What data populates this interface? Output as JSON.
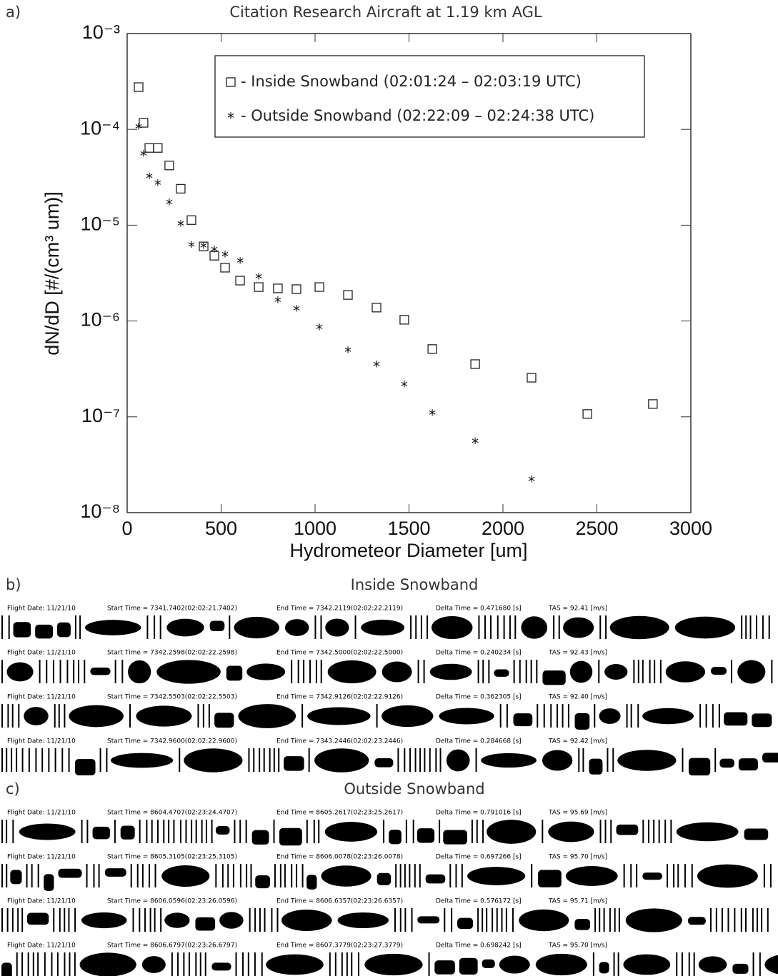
{
  "chart_data": {
    "type": "scatter",
    "panel_label": "a)",
    "title": "Citation Research Aircraft at 1.19 km AGL",
    "xlabel": "Hydrometeor Diameter [um]",
    "ylabel": "dN/dD [#/(cm³ um)]",
    "xlim": [
      0,
      3000
    ],
    "xticks": [
      0,
      500,
      1000,
      1500,
      2000,
      2500,
      3000
    ],
    "ylim": [
      1e-08,
      0.001
    ],
    "yscale": "log",
    "yticks": [
      {
        "value": 1e-08,
        "label": "10⁻⁸"
      },
      {
        "value": 1e-07,
        "label": "10⁻⁷"
      },
      {
        "value": 1e-06,
        "label": "10⁻⁶"
      },
      {
        "value": 1e-05,
        "label": "10⁻⁵"
      },
      {
        "value": 0.0001,
        "label": "10⁻⁴"
      },
      {
        "value": 0.001,
        "label": "10⁻³"
      }
    ],
    "legend": "upper right",
    "series": [
      {
        "name": "- Inside Snowband (02:01:24 – 02:03:19 UTC)",
        "marker": "square",
        "color": "#222",
        "x": [
          61,
          87,
          118,
          163,
          224,
          285,
          342,
          407,
          464,
          521,
          601,
          700,
          802,
          901,
          1023,
          1175,
          1327,
          1475,
          1624,
          1852,
          2152,
          2449,
          2798
        ],
        "values": [
          0.000276,
          0.000117,
          6.4e-05,
          6.4e-05,
          4.2e-05,
          2.4e-05,
          1.13e-05,
          6e-06,
          4.8e-06,
          3.6e-06,
          2.64e-06,
          2.26e-06,
          2.19e-06,
          2.15e-06,
          2.26e-06,
          1.87e-06,
          1.38e-06,
          1.03e-06,
          5.1e-07,
          3.55e-07,
          2.56e-07,
          1.07e-07,
          1.36e-07
        ]
      },
      {
        "name": "- Outside Snowband (02:22:09 – 02:24:38 UTC)",
        "marker": "star",
        "color": "#222",
        "x": [
          61,
          87,
          118,
          163,
          224,
          285,
          342,
          407,
          464,
          521,
          601,
          700,
          802,
          901,
          1023,
          1175,
          1327,
          1475,
          1624,
          1852,
          2152
        ],
        "values": [
          0.000106,
          5.5e-05,
          3.2e-05,
          2.72e-05,
          1.71e-05,
          1.02e-05,
          6.2e-06,
          6e-06,
          5.5e-06,
          4.9e-06,
          4.2e-06,
          2.88e-06,
          1.63e-06,
          1.33e-06,
          8.5e-07,
          4.9e-07,
          3.5e-07,
          2.16e-07,
          1.09e-07,
          5.5e-08,
          2.2e-08
        ]
      }
    ]
  },
  "panels": [
    {
      "label": "b)",
      "title": "Inside Snowband",
      "rows": [
        [
          "Flight Date: 11/21/10",
          "Start Time = 7341.7402(02:02:21.7402)",
          "End Time = 7342.2119(02:02:22.2119)",
          "Delta Time = 0.471680 [s]",
          "TAS = 92.41 [m/s]"
        ],
        [
          "Flight Date: 11/21/10",
          "Start Time = 7342.2598(02:02:22.2598)",
          "End Time = 7342.5000(02:02:22.5000)",
          "Delta Time = 0.240234 [s]",
          "TAS = 92.43 [m/s]"
        ],
        [
          "Flight Date: 11/21/10",
          "Start Time = 7342.5503(02:02:22.5503)",
          "End Time = 7342.9126(02:02:22.9126)",
          "Delta Time = 0.362305 [s]",
          "TAS = 92.40 [m/s]"
        ],
        [
          "Flight Date: 11/21/10",
          "Start Time = 7342.9600(02:02:22.9600)",
          "End Time = 7343.2446(02:02:23.2446)",
          "Delta Time = 0.284668 [s]",
          "TAS = 92.42 [m/s]"
        ]
      ]
    },
    {
      "label": "c)",
      "title": "Outside Snowband",
      "rows": [
        [
          "Flight Date: 11/21/10",
          "Start Time = 8604.4707(02:23:24.4707)",
          "End Time = 8605.2617(02:23:25.2617)",
          "Delta Time = 0.791016 [s]",
          "TAS = 95.69 [m/s]"
        ],
        [
          "Flight Date: 11/21/10",
          "Start Time = 8605.3105(02:23:25.3105)",
          "End Time = 8606.0078(02:23:26.0078)",
          "Delta Time = 0.697266 [s]",
          "TAS = 95.70 [m/s]"
        ],
        [
          "Flight Date: 11/21/10",
          "Start Time = 8606.0596(02:23:26.0596)",
          "End Time = 8606.6357(02:23:26.6357)",
          "Delta Time = 0.576172 [s]",
          "TAS = 95.71 [m/s]"
        ],
        [
          "Flight Date: 11/21/10",
          "Start Time = 8606.6797(02:23:26.6797)",
          "End Time = 8607.3779(02:23:27.3779)",
          "Delta Time = 0.698242 [s]",
          "TAS = 95.70 [m/s]"
        ]
      ]
    }
  ]
}
